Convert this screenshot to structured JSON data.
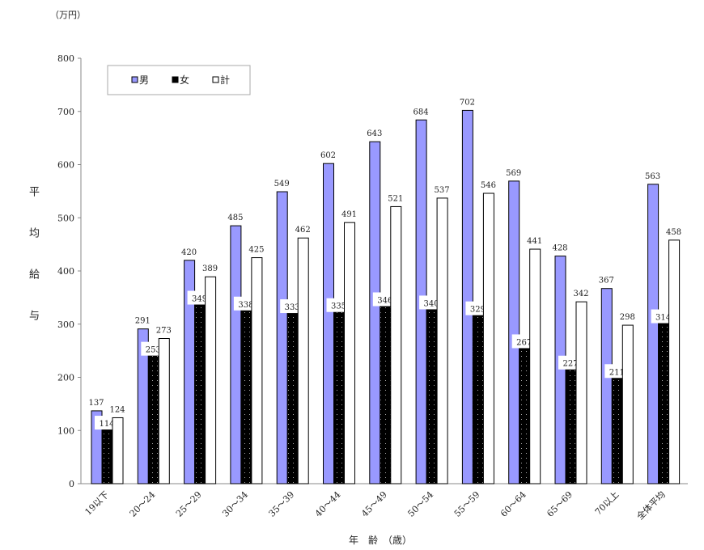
{
  "chart_data": {
    "type": "bar",
    "unit_label": "（万円）",
    "ylabel": "平均給与",
    "xlabel": "年　齢　（歳）",
    "ylim": [
      0,
      800
    ],
    "yticks": [
      0,
      100,
      200,
      300,
      400,
      500,
      600,
      700,
      800
    ],
    "legend_position": "top-left",
    "categories": [
      "19以下",
      "20～24",
      "25～29",
      "30～34",
      "35～39",
      "40～44",
      "45～49",
      "50～54",
      "55～59",
      "60～64",
      "65～69",
      "70以上",
      "全体平均"
    ],
    "series": [
      {
        "name": "男",
        "color": "#9999ff",
        "values": [
          137,
          291,
          420,
          485,
          549,
          602,
          643,
          684,
          702,
          569,
          428,
          367,
          563
        ]
      },
      {
        "name": "女",
        "color": "#000000",
        "values": [
          114,
          253,
          349,
          338,
          333,
          335,
          346,
          340,
          329,
          267,
          227,
          211,
          314
        ]
      },
      {
        "name": "計",
        "color": "#ffffff",
        "values": [
          124,
          273,
          389,
          425,
          462,
          491,
          521,
          537,
          546,
          441,
          342,
          298,
          458
        ]
      }
    ]
  }
}
